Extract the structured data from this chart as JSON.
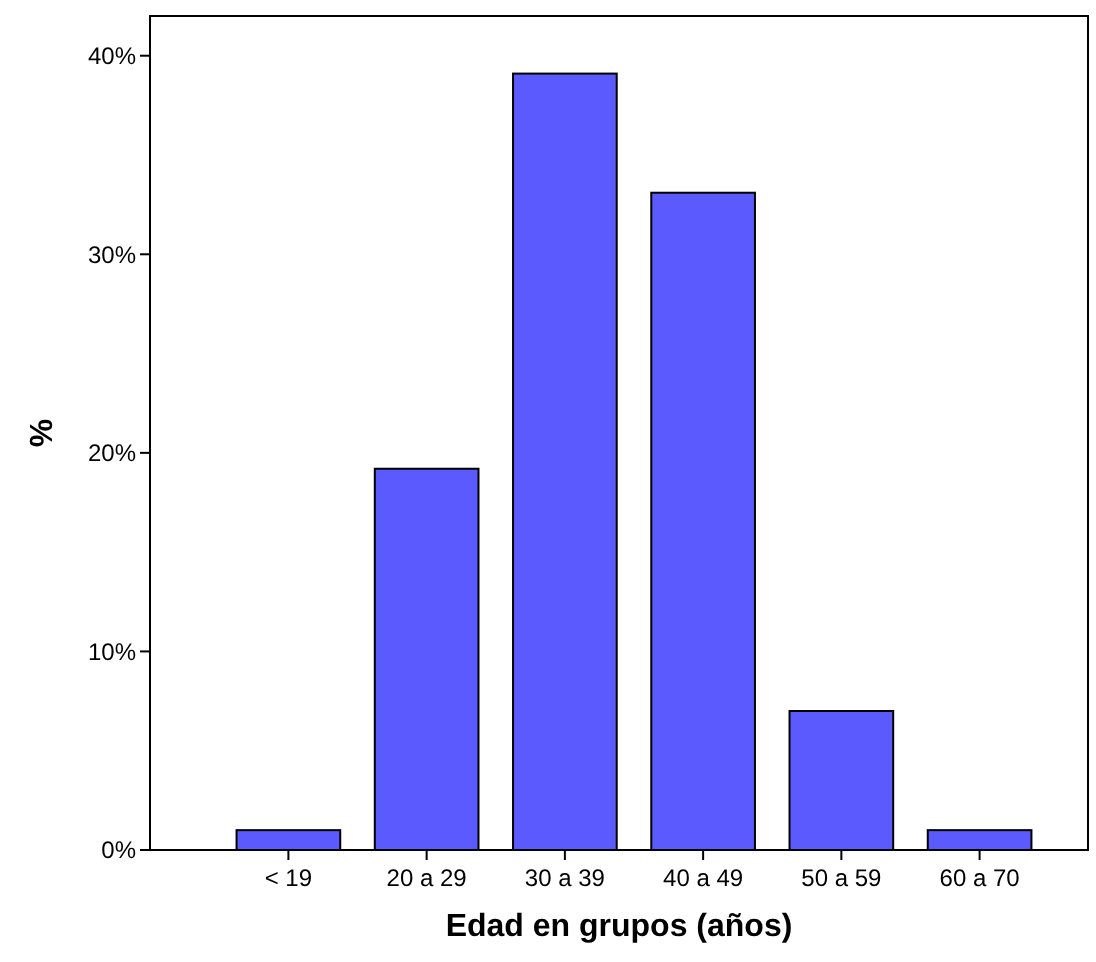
{
  "chart_data": {
    "type": "bar",
    "xlabel": "Edad en grupos (años)",
    "ylabel": "%",
    "categories": [
      "< 19",
      "20 a 29",
      "30 a 39",
      "40 a 49",
      "50 a 59",
      "60 a 70"
    ],
    "values": [
      1.0,
      19.2,
      39.1,
      33.1,
      7.0,
      1.0
    ],
    "color": "#5a5aff",
    "ylim": [
      0,
      42
    ],
    "yticks": [
      {
        "value": 0,
        "label": "0%"
      },
      {
        "value": 10,
        "label": "10%"
      },
      {
        "value": 20,
        "label": "20%"
      },
      {
        "value": 30,
        "label": "30%"
      },
      {
        "value": 40,
        "label": "40%"
      }
    ]
  }
}
